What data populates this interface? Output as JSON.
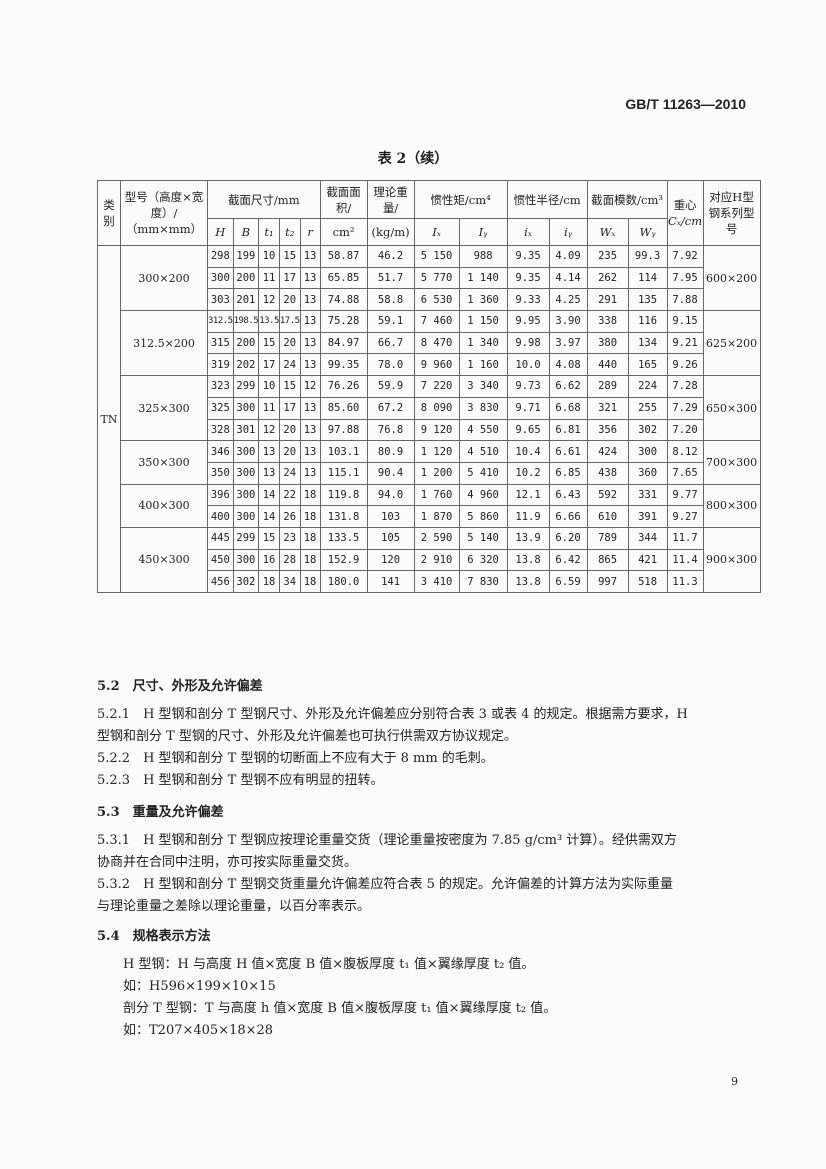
{
  "header": {
    "standard": "GB/T 11263—2010"
  },
  "table": {
    "caption": "表 2（续）",
    "headers": {
      "category": "类别",
      "model": "型号（高度×宽度）/（mm×mm）",
      "dims": "截面尺寸/mm",
      "H": "H",
      "B": "B",
      "t1": "t₁",
      "t2": "t₂",
      "r": "r",
      "area": "截面面积/",
      "area_unit": "cm²",
      "weight": "理论重量/",
      "weight_unit": "(kg/m)",
      "inertia": "惯性矩/cm⁴",
      "Ix": "Iₓ",
      "Iy": "Iᵧ",
      "radius": "惯性半径/cm",
      "ix": "iₓ",
      "iy": "iᵧ",
      "modulus": "截面模数/cm³",
      "Wx": "Wₓ",
      "Wy": "Wᵧ",
      "cg": "重心",
      "cg_unit": "Cₓ/cm",
      "hseries": "对应H型钢系列型号"
    },
    "category": "TN",
    "groups": [
      {
        "model": "300×200",
        "hseries": "600×200",
        "rows": [
          [
            "298",
            "199",
            "10",
            "15",
            "13",
            "58.87",
            "46.2",
            "5 150",
            "988",
            "9.35",
            "4.09",
            "235",
            "99.3",
            "7.92"
          ],
          [
            "300",
            "200",
            "11",
            "17",
            "13",
            "65.85",
            "51.7",
            "5 770",
            "1 140",
            "9.35",
            "4.14",
            "262",
            "114",
            "7.95"
          ],
          [
            "303",
            "201",
            "12",
            "20",
            "13",
            "74.88",
            "58.8",
            "6 530",
            "1 360",
            "9.33",
            "4.25",
            "291",
            "135",
            "7.88"
          ]
        ]
      },
      {
        "model": "312.5×200",
        "hseries": "625×200",
        "rows": [
          [
            "312.5",
            "198.5",
            "13.5",
            "17.5",
            "13",
            "75.28",
            "59.1",
            "7 460",
            "1 150",
            "9.95",
            "3.90",
            "338",
            "116",
            "9.15"
          ],
          [
            "315",
            "200",
            "15",
            "20",
            "13",
            "84.97",
            "66.7",
            "8 470",
            "1 340",
            "9.98",
            "3.97",
            "380",
            "134",
            "9.21"
          ],
          [
            "319",
            "202",
            "17",
            "24",
            "13",
            "99.35",
            "78.0",
            "9 960",
            "1 160",
            "10.0",
            "4.08",
            "440",
            "165",
            "9.26"
          ]
        ]
      },
      {
        "model": "325×300",
        "hseries": "650×300",
        "rows": [
          [
            "323",
            "299",
            "10",
            "15",
            "12",
            "76.26",
            "59.9",
            "7 220",
            "3 340",
            "9.73",
            "6.62",
            "289",
            "224",
            "7.28"
          ],
          [
            "325",
            "300",
            "11",
            "17",
            "13",
            "85.60",
            "67.2",
            "8 090",
            "3 830",
            "9.71",
            "6.68",
            "321",
            "255",
            "7.29"
          ],
          [
            "328",
            "301",
            "12",
            "20",
            "13",
            "97.88",
            "76.8",
            "9 120",
            "4 550",
            "9.65",
            "6.81",
            "356",
            "302",
            "7.20"
          ]
        ]
      },
      {
        "model": "350×300",
        "hseries": "700×300",
        "rows": [
          [
            "346",
            "300",
            "13",
            "20",
            "13",
            "103.1",
            "80.9",
            "1 120",
            "4 510",
            "10.4",
            "6.61",
            "424",
            "300",
            "8.12"
          ],
          [
            "350",
            "300",
            "13",
            "24",
            "13",
            "115.1",
            "90.4",
            "1 200",
            "5 410",
            "10.2",
            "6.85",
            "438",
            "360",
            "7.65"
          ]
        ]
      },
      {
        "model": "400×300",
        "hseries": "800×300",
        "rows": [
          [
            "396",
            "300",
            "14",
            "22",
            "18",
            "119.8",
            "94.0",
            "1 760",
            "4 960",
            "12.1",
            "6.43",
            "592",
            "331",
            "9.77"
          ],
          [
            "400",
            "300",
            "14",
            "26",
            "18",
            "131.8",
            "103",
            "1 870",
            "5 860",
            "11.9",
            "6.66",
            "610",
            "391",
            "9.27"
          ]
        ]
      },
      {
        "model": "450×300",
        "hseries": "900×300",
        "rows": [
          [
            "445",
            "299",
            "15",
            "23",
            "18",
            "133.5",
            "105",
            "2 590",
            "5 140",
            "13.9",
            "6.20",
            "789",
            "344",
            "11.7"
          ],
          [
            "450",
            "300",
            "16",
            "28",
            "18",
            "152.9",
            "120",
            "2 910",
            "6 320",
            "13.8",
            "6.42",
            "865",
            "421",
            "11.4"
          ],
          [
            "456",
            "302",
            "18",
            "34",
            "18",
            "180.0",
            "141",
            "3 410",
            "7 830",
            "13.8",
            "6.59",
            "997",
            "518",
            "11.3"
          ]
        ]
      }
    ]
  },
  "text": {
    "s52": "5.2　尺寸、外形及允许偏差",
    "s521a": "5.2.1　H 型钢和剖分 T 型钢尺寸、外形及允许偏差应分别符合表 3 或表 4 的规定。根据需方要求，H",
    "s521b": "型钢和剖分 T 型钢的尺寸、外形及允许偏差也可执行供需双方协议规定。",
    "s522": "5.2.2　H 型钢和剖分 T 型钢的切断面上不应有大于 8 mm 的毛刺。",
    "s523": "5.2.3　H 型钢和剖分 T 型钢不应有明显的扭转。",
    "s53": "5.3　重量及允许偏差",
    "s531a": "5.3.1　H 型钢和剖分 T 型钢应按理论重量交货（理论重量按密度为 7.85 g/cm³ 计算）。经供需双方",
    "s531b": "协商并在合同中注明，亦可按实际重量交货。",
    "s532a": "5.3.2　H 型钢和剖分 T 型钢交货重量允许偏差应符合表 5 的规定。允许偏差的计算方法为实际重量",
    "s532b": "与理论重量之差除以理论重量，以百分率表示。",
    "s54": "5.4　规格表示方法",
    "s54a": "H 型钢：H 与高度 H 值×宽度 B 值×腹板厚度 t₁ 值×翼缘厚度 t₂ 值。",
    "s54b": "如：H596×199×10×15",
    "s54c": "剖分 T 型钢：T 与高度 h 值×宽度 B 值×腹板厚度 t₁ 值×翼缘厚度 t₂ 值。",
    "s54d": "如：T207×405×18×28"
  },
  "footer": {
    "page": "9"
  }
}
